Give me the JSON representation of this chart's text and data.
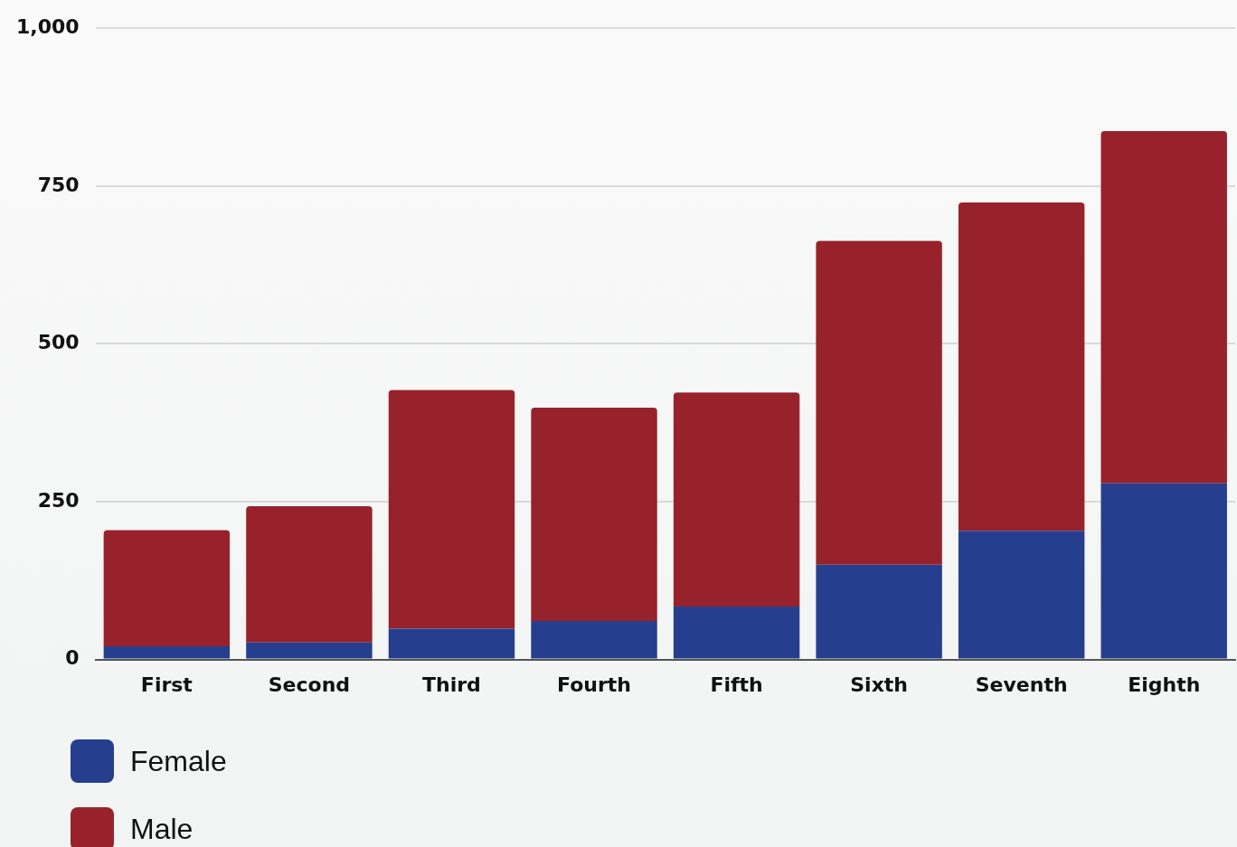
{
  "chart_data": {
    "type": "bar",
    "stacked": true,
    "categories": [
      "First",
      "Second",
      "Third",
      "Fourth",
      "Fifth",
      "Sixth",
      "Seventh",
      "Eighth"
    ],
    "series": [
      {
        "name": "Female",
        "color": "#253f8e",
        "values": [
          21,
          27,
          49,
          61,
          84,
          150,
          204,
          279
        ]
      },
      {
        "name": "Male",
        "color": "#98222b",
        "values": [
          184,
          216,
          378,
          338,
          339,
          513,
          520,
          558
        ]
      }
    ],
    "ylim": [
      0,
      1000
    ],
    "yticks": [
      0,
      250,
      500,
      750,
      {
        "value": 1000,
        "label": "1,000"
      }
    ],
    "grid": "y",
    "legend": "bottom left"
  }
}
